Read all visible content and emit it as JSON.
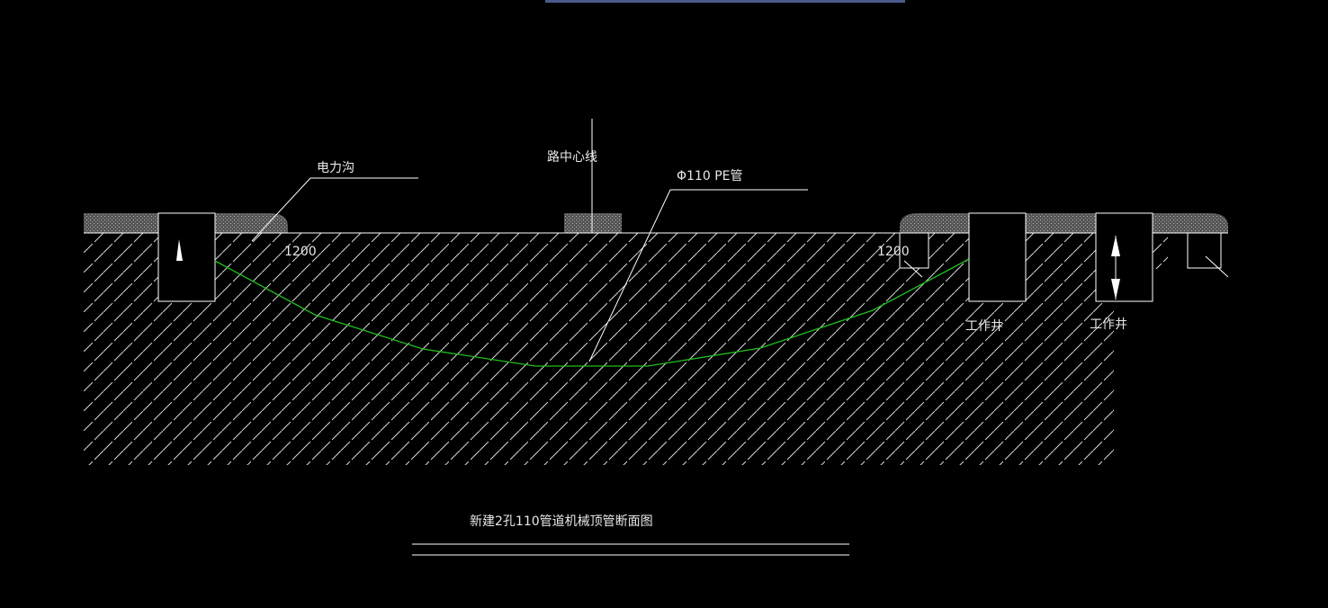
{
  "labels": {
    "power_trench": "电力沟",
    "road_centerline": "路中心线",
    "pipe": "Φ110 PE管",
    "distance_left": "1200",
    "distance_right": "1200",
    "work_well_1": "工作井",
    "work_well_2": "工作井"
  },
  "title": "新建2孔110管道机械顶管断面图"
}
